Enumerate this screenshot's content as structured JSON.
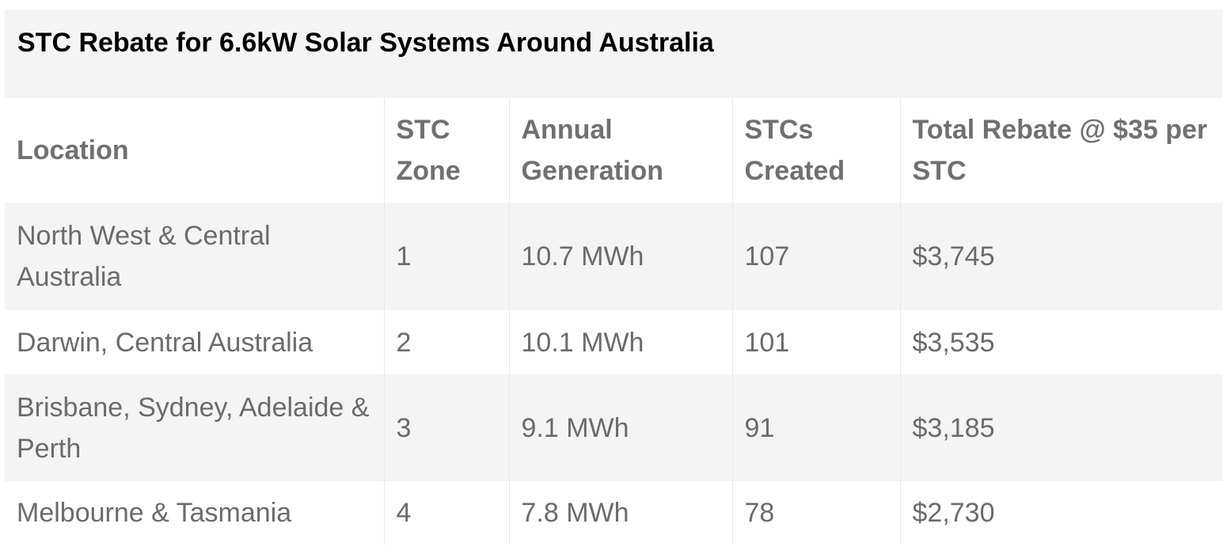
{
  "table": {
    "title": "STC Rebate for 6.6kW Solar Systems Around Australia",
    "headers": [
      "Location",
      "STC Zone",
      "Annual Generation",
      "STCs Created",
      "Total Rebate @ $35 per STC"
    ],
    "rows": [
      [
        "North West & Central Australia",
        "1",
        "10.7 MWh",
        "107",
        "$3,745"
      ],
      [
        "Darwin, Central Australia",
        "2",
        "10.1 MWh",
        "101",
        "$3,535"
      ],
      [
        "Brisbane, Sydney, Adelaide & Perth",
        "3",
        "9.1 MWh",
        "91",
        "$3,185"
      ],
      [
        "Melbourne & Tasmania",
        "4",
        "7.8 MWh",
        "78",
        "$2,730"
      ]
    ]
  }
}
